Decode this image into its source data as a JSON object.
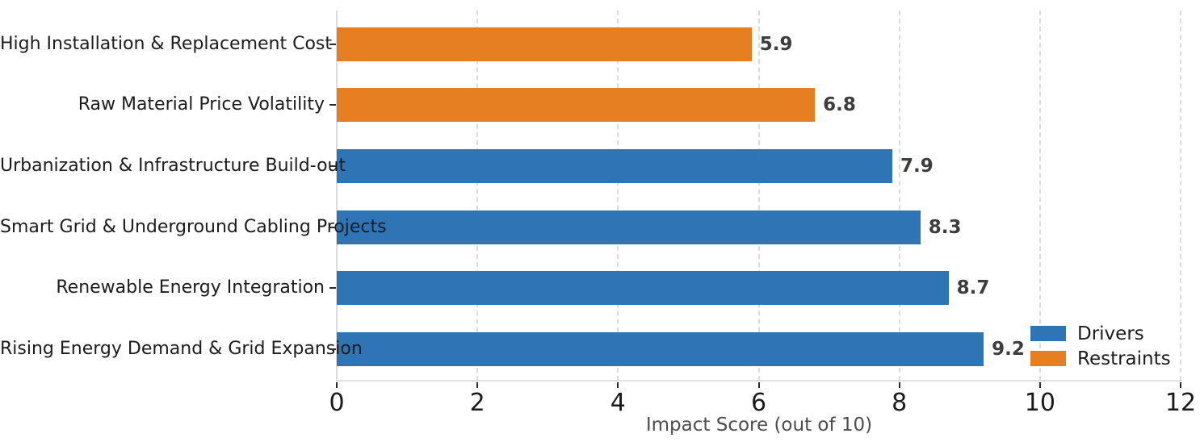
{
  "chart_data": {
    "type": "bar",
    "orientation": "horizontal",
    "xlabel": "Impact Score (out of 10)",
    "xlim": [
      0,
      12
    ],
    "xticks": [
      0,
      2,
      4,
      6,
      8,
      10,
      12
    ],
    "grid": "vertical-dashed",
    "legend_position": "lower right",
    "bars": [
      {
        "label": "High Installation & Replacement Cost",
        "value": 5.9,
        "series": "Restraints"
      },
      {
        "label": "Raw Material Price Volatility",
        "value": 6.8,
        "series": "Restraints"
      },
      {
        "label": "Urbanization & Infrastructure Build-out",
        "value": 7.9,
        "series": "Drivers"
      },
      {
        "label": "Smart Grid & Underground Cabling Projects",
        "value": 8.3,
        "series": "Drivers"
      },
      {
        "label": "Renewable Energy Integration",
        "value": 8.7,
        "series": "Drivers"
      },
      {
        "label": "Rising Energy Demand & Grid Expansion",
        "value": 9.2,
        "series": "Drivers"
      }
    ],
    "series": [
      {
        "name": "Drivers",
        "color": "#2e75b6"
      },
      {
        "name": "Restraints",
        "color": "#e67e22"
      }
    ]
  }
}
